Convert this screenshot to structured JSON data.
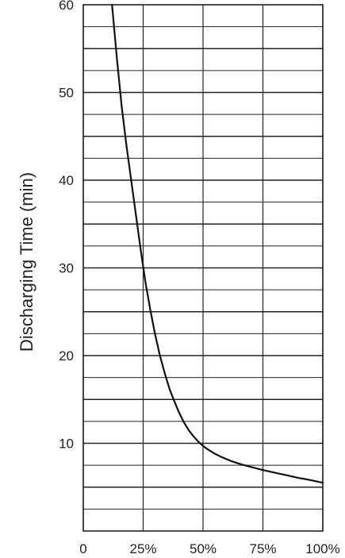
{
  "chart_data": {
    "type": "line",
    "title": "",
    "xlabel": "",
    "ylabel": "Discharging Time (min)",
    "xlim": [
      0,
      100
    ],
    "ylim": [
      0,
      60
    ],
    "x_ticks": [
      0,
      25,
      50,
      75,
      100
    ],
    "x_tick_labels": [
      "0",
      "25%",
      "50%",
      "75%",
      "100%"
    ],
    "y_ticks": [
      10,
      20,
      30,
      40,
      50,
      60
    ],
    "y_tick_labels": [
      "10",
      "20",
      "30",
      "40",
      "50",
      "60"
    ],
    "grid": true,
    "line_color": "#111111",
    "grid_color": "#222222",
    "series": [
      {
        "x": [
          12,
          14,
          16,
          18,
          20,
          22,
          24,
          26,
          28,
          30,
          32,
          34,
          36,
          38,
          40,
          42,
          44,
          46,
          48,
          50,
          52,
          55,
          58,
          62,
          66,
          70,
          75,
          80,
          85,
          90,
          95,
          100
        ],
        "y": [
          60,
          54,
          48.5,
          44,
          40,
          36,
          32,
          28.3,
          25.2,
          22.4,
          20,
          18,
          16.2,
          14.8,
          13.5,
          12.4,
          11.5,
          10.8,
          10.2,
          9.7,
          9.3,
          8.8,
          8.4,
          7.95,
          7.6,
          7.3,
          6.95,
          6.65,
          6.35,
          6.05,
          5.8,
          5.5
        ]
      }
    ]
  }
}
